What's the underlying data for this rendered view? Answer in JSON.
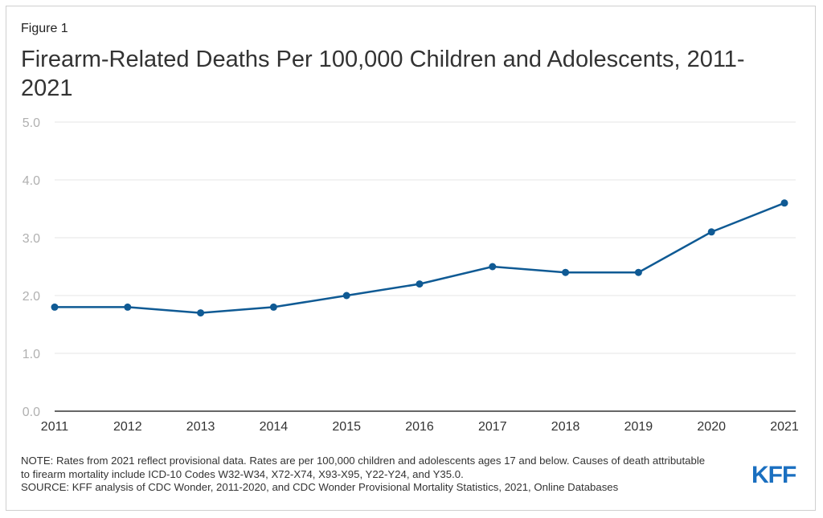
{
  "figure_label": "Figure 1",
  "title": "Firearm-Related Deaths Per 100,000 Children and Adolescents, 2011-2021",
  "note": "NOTE: Rates from 2021 reflect provisional data. Rates are per 100,000 children and adolescents ages 17 and below. Causes of death attributable to firearm mortality include ICD-10 Codes W32-W34, X72-X74, X93-X95, Y22-Y24, and Y35.0.",
  "source": "SOURCE: KFF analysis of CDC Wonder, 2011-2020, and CDC Wonder Provisional Mortality Statistics, 2021, Online Databases",
  "logo_text": "KFF",
  "colors": {
    "line": "#0f5a94",
    "logo": "#1a6fc0",
    "grid": "#e6e6e6"
  },
  "chart_data": {
    "type": "line",
    "title": "Firearm-Related Deaths Per 100,000 Children and Adolescents, 2011-2021",
    "xlabel": "",
    "ylabel": "",
    "categories": [
      "2011",
      "2012",
      "2013",
      "2014",
      "2015",
      "2016",
      "2017",
      "2018",
      "2019",
      "2020",
      "2021"
    ],
    "values": [
      1.8,
      1.8,
      1.7,
      1.8,
      2.0,
      2.2,
      2.5,
      2.4,
      2.4,
      3.1,
      3.6
    ],
    "ylim": [
      0,
      5
    ],
    "yticks": [
      "0.0",
      "1.0",
      "2.0",
      "3.0",
      "4.0",
      "5.0"
    ],
    "grid": true,
    "legend": "none"
  }
}
